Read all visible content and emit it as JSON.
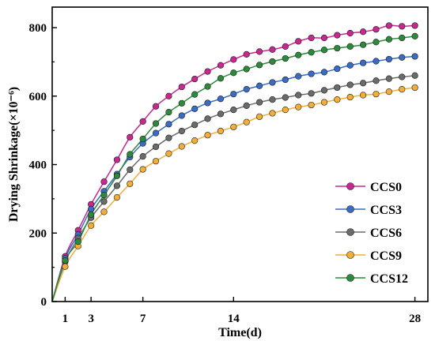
{
  "chart_data": {
    "type": "line",
    "xlabel": "Time(d)",
    "ylabel": "Drying Shrinkage(×10⁻⁶)",
    "xlim": [
      0,
      29
    ],
    "ylim": [
      0,
      860
    ],
    "x_ticks": [
      1,
      3,
      7,
      14,
      28
    ],
    "y_ticks": [
      0,
      200,
      400,
      600,
      800
    ],
    "grid": false,
    "legend_position": "center-right",
    "x": [
      0,
      1,
      2,
      3,
      4,
      5,
      6,
      7,
      8,
      9,
      10,
      11,
      12,
      13,
      14,
      15,
      16,
      17,
      18,
      19,
      20,
      21,
      22,
      23,
      24,
      25,
      26,
      27,
      28
    ],
    "series": [
      {
        "name": "CCS0",
        "color": "#c8288f",
        "values": [
          0,
          132,
          208,
          284,
          350,
          414,
          480,
          526,
          570,
          600,
          627,
          650,
          672,
          690,
          707,
          722,
          730,
          736,
          745,
          760,
          770,
          770,
          778,
          784,
          788,
          795,
          806,
          804,
          806
        ]
      },
      {
        "name": "CCS3",
        "color": "#3a6cc4",
        "values": [
          0,
          126,
          196,
          270,
          322,
          372,
          422,
          462,
          492,
          518,
          543,
          563,
          580,
          592,
          606,
          620,
          630,
          640,
          648,
          658,
          665,
          670,
          680,
          690,
          697,
          702,
          708,
          713,
          716
        ]
      },
      {
        "name": "CCS6",
        "color": "#6b6b6b",
        "values": [
          0,
          116,
          185,
          245,
          292,
          338,
          385,
          424,
          452,
          478,
          498,
          516,
          534,
          548,
          560,
          572,
          582,
          590,
          596,
          603,
          608,
          617,
          625,
          633,
          638,
          645,
          651,
          656,
          660
        ]
      },
      {
        "name": "CCS9",
        "color": "#f2ae3a",
        "values": [
          0,
          102,
          162,
          222,
          262,
          304,
          344,
          386,
          410,
          432,
          453,
          470,
          486,
          498,
          510,
          524,
          540,
          550,
          560,
          568,
          574,
          582,
          590,
          597,
          603,
          606,
          613,
          620,
          625
        ]
      },
      {
        "name": "CCS12",
        "color": "#2d8a3c",
        "values": [
          0,
          120,
          175,
          254,
          311,
          367,
          430,
          475,
          520,
          553,
          579,
          605,
          628,
          652,
          668,
          679,
          691,
          701,
          710,
          720,
          728,
          735,
          740,
          745,
          750,
          758,
          766,
          770,
          775
        ]
      }
    ]
  }
}
